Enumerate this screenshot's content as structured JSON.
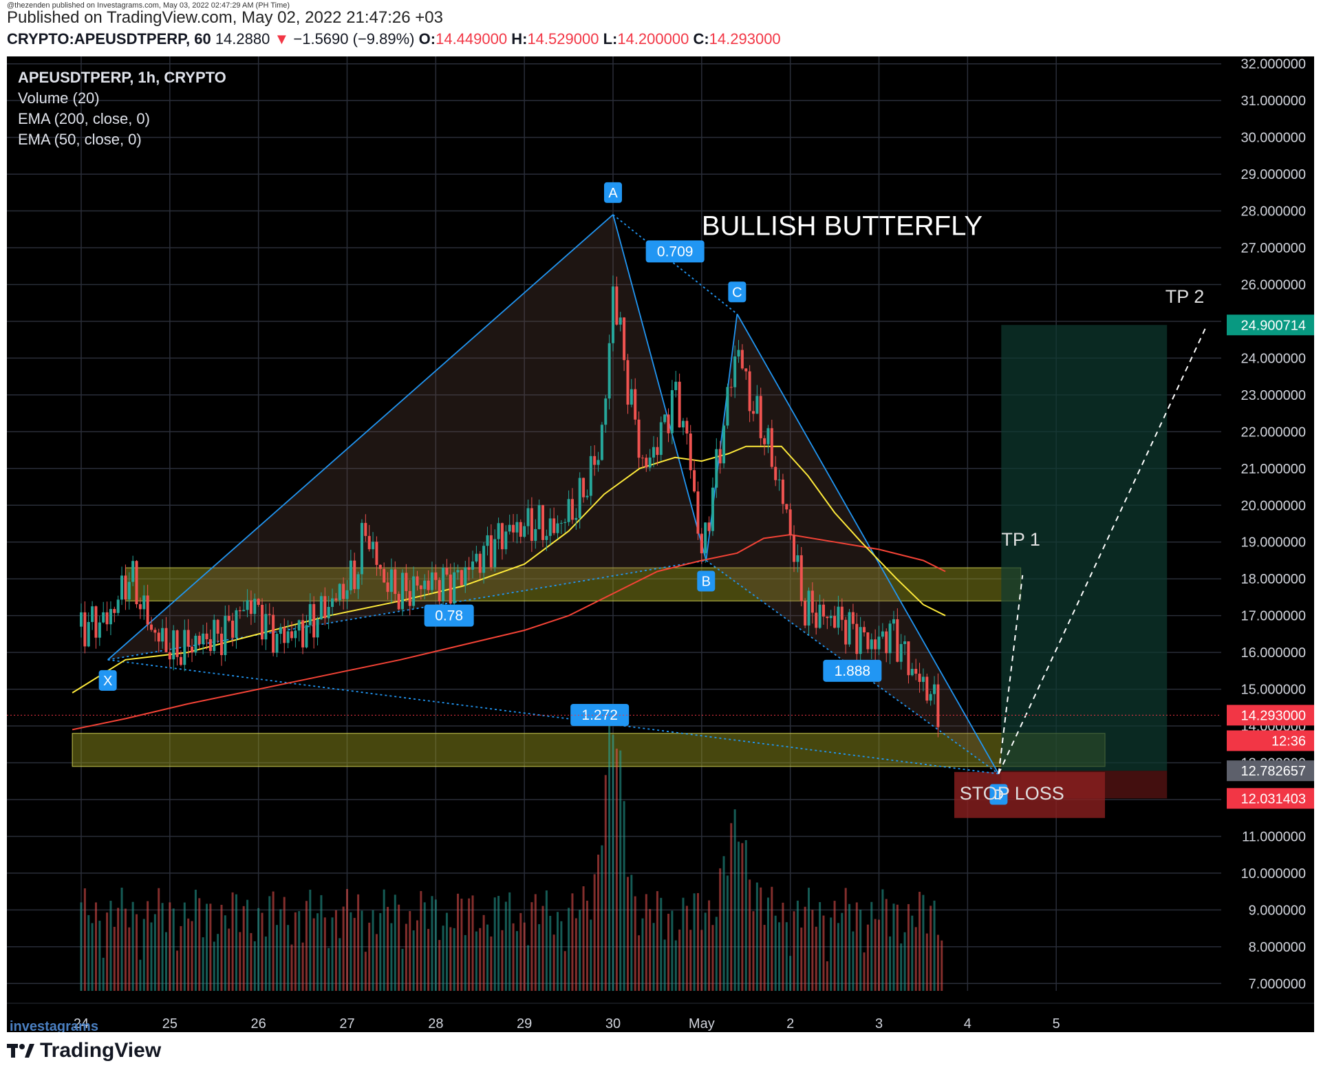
{
  "published": {
    "credit": "@thezenden published on Investagrams.com, May 03, 2022 02:47:29 AM (PH Time)",
    "main": "Published on TradingView.com, May 02, 2022 21:47:26 +03"
  },
  "header": {
    "symbol": "CRYPTO:APEUSDTPERP, 60",
    "last": "14.2880",
    "arrow": "▼",
    "change": "−1.5690 (−9.89%)",
    "o_label": "O:",
    "o": "14.449000",
    "h_label": "H:",
    "h": "14.529000",
    "l_label": "L:",
    "l": "14.200000",
    "c_label": "C:",
    "c": "14.293000"
  },
  "legend": [
    "APEUSDTPERP, 1h, CRYPTO",
    "Volume (20)",
    "EMA (200, close, 0)",
    "EMA (50, close, 0)"
  ],
  "footer": {
    "brand": "TradingView",
    "watermark": "investagrams"
  },
  "colors": {
    "background": "#000000",
    "grid": "#2a2e39",
    "candle_up": "#26a69a",
    "candle_down": "#ef5350",
    "pattern_line": "#2196f3",
    "ema200": "#f44336",
    "ema50": "#ffeb3b",
    "zone": "#9e9e1e",
    "target_box": "#0e3b30",
    "stop_box": "#5a1414",
    "label_bg": "#2196f3"
  },
  "chart_data": {
    "type": "candlestick",
    "title": "BULLISH BUTTERFLY",
    "pair": "APEUSDTPERP",
    "timeframe": "1h",
    "x_ticks": [
      "24",
      "25",
      "26",
      "27",
      "28",
      "29",
      "30",
      "May",
      "2",
      "3",
      "4",
      "5"
    ],
    "y_range": [
      6.8,
      32.2
    ],
    "y_ticks": [
      "32.000000",
      "31.000000",
      "30.000000",
      "29.000000",
      "28.000000",
      "27.000000",
      "26.000000",
      "25.000000",
      "24.000000",
      "23.000000",
      "22.000000",
      "21.000000",
      "20.000000",
      "19.000000",
      "18.000000",
      "17.000000",
      "16.000000",
      "15.000000",
      "14.000000",
      "13.000000",
      "12.000000",
      "11.000000",
      "10.000000",
      "9.000000",
      "8.000000",
      "7.000000"
    ],
    "grid": true,
    "price_path_days": [
      [
        23.0,
        16.7
      ],
      [
        23.3,
        16.9
      ],
      [
        23.55,
        18.1
      ],
      [
        23.8,
        16.6
      ],
      [
        24.05,
        16.0
      ],
      [
        24.3,
        16.3
      ],
      [
        24.6,
        16.5
      ],
      [
        24.9,
        17.4
      ],
      [
        25.2,
        16.4
      ],
      [
        25.5,
        16.6
      ],
      [
        25.8,
        17.3
      ],
      [
        26.1,
        18.1
      ],
      [
        26.2,
        19.4
      ],
      [
        26.4,
        18.0
      ],
      [
        26.6,
        17.6
      ],
      [
        26.9,
        17.9
      ],
      [
        27.2,
        17.9
      ],
      [
        27.5,
        18.6
      ],
      [
        27.8,
        19.3
      ],
      [
        28.1,
        19.5
      ],
      [
        28.3,
        19.3
      ],
      [
        28.6,
        20.0
      ],
      [
        28.85,
        21.5
      ],
      [
        28.95,
        23.8
      ],
      [
        29.0,
        26.0
      ],
      [
        29.15,
        23.5
      ],
      [
        29.35,
        20.9
      ],
      [
        29.55,
        22.0
      ],
      [
        29.7,
        23.1
      ],
      [
        29.85,
        21.6
      ],
      [
        30.0,
        18.6
      ],
      [
        30.2,
        21.5
      ],
      [
        30.4,
        24.4
      ],
      [
        30.55,
        22.8
      ],
      [
        30.7,
        22.0
      ],
      [
        30.9,
        20.3
      ],
      [
        31.0,
        19.3
      ],
      [
        31.15,
        17.2
      ],
      [
        31.35,
        17.0
      ],
      [
        31.55,
        16.9
      ],
      [
        31.75,
        16.5
      ],
      [
        31.95,
        16.2
      ],
      [
        32.15,
        16.6
      ],
      [
        32.4,
        15.4
      ],
      [
        32.55,
        15.0
      ],
      [
        32.7,
        14.3
      ]
    ],
    "ema50_days": [
      [
        22.9,
        14.9
      ],
      [
        23.5,
        15.8
      ],
      [
        24.2,
        16.0
      ],
      [
        25.0,
        16.5
      ],
      [
        25.8,
        17.0
      ],
      [
        26.6,
        17.4
      ],
      [
        27.3,
        17.8
      ],
      [
        28.0,
        18.4
      ],
      [
        28.5,
        19.3
      ],
      [
        28.9,
        20.3
      ],
      [
        29.3,
        21.0
      ],
      [
        29.7,
        21.3
      ],
      [
        30.0,
        21.2
      ],
      [
        30.3,
        21.4
      ],
      [
        30.5,
        21.6
      ],
      [
        30.9,
        21.6
      ],
      [
        31.2,
        20.8
      ],
      [
        31.5,
        19.8
      ],
      [
        31.8,
        19.0
      ],
      [
        32.2,
        18.0
      ],
      [
        32.5,
        17.3
      ],
      [
        32.75,
        17.0
      ]
    ],
    "ema200_days": [
      [
        22.9,
        13.9
      ],
      [
        23.5,
        14.2
      ],
      [
        24.2,
        14.6
      ],
      [
        25.0,
        15.0
      ],
      [
        25.8,
        15.4
      ],
      [
        26.6,
        15.8
      ],
      [
        27.3,
        16.2
      ],
      [
        28.0,
        16.6
      ],
      [
        28.5,
        17.0
      ],
      [
        29.0,
        17.6
      ],
      [
        29.5,
        18.2
      ],
      [
        30.0,
        18.5
      ],
      [
        30.4,
        18.7
      ],
      [
        30.7,
        19.1
      ],
      [
        31.0,
        19.2
      ],
      [
        31.5,
        19.0
      ],
      [
        32.0,
        18.8
      ],
      [
        32.5,
        18.5
      ],
      [
        32.75,
        18.2
      ]
    ],
    "harmonic_points": [
      {
        "label": "X",
        "day": 23.3,
        "price": 15.8
      },
      {
        "label": "A",
        "day": 29.0,
        "price": 27.9
      },
      {
        "label": "B",
        "day": 30.05,
        "price": 18.5
      },
      {
        "label": "C",
        "day": 30.4,
        "price": 25.2
      },
      {
        "label": "D",
        "day": 33.35,
        "price": 12.7
      }
    ],
    "ratios": [
      {
        "label": "0.709",
        "day": 29.7,
        "price": 26.9
      },
      {
        "label": "0.78",
        "day": 27.15,
        "price": 17.0
      },
      {
        "label": "1.888",
        "day": 31.7,
        "price": 15.5
      },
      {
        "label": "1.272",
        "day": 28.85,
        "price": 14.3
      }
    ],
    "zones": [
      {
        "from_day": 23.5,
        "to_day": 33.6,
        "low": 17.4,
        "high": 18.3
      },
      {
        "from_day": 22.9,
        "to_day": 34.55,
        "low": 12.9,
        "high": 13.8
      }
    ],
    "annotations": [
      {
        "text": "TP 1",
        "day": 33.6,
        "price": 18.9
      },
      {
        "text": "TP 2",
        "day": 35.45,
        "price": 25.5
      },
      {
        "text": "STOP LOSS",
        "day": 33.5,
        "price": 12.0
      }
    ],
    "position": {
      "entry": 12.782657,
      "target": 24.900714,
      "stop": 12.031403,
      "from_day": 33.38,
      "to_day": 35.25
    },
    "price_labels": [
      {
        "value": "24.900714",
        "price": 24.900714,
        "color": "#089981"
      },
      {
        "value": "14.293000",
        "price": 14.293,
        "color": "#f23645"
      },
      {
        "value": "12:36",
        "price": 13.6,
        "color": "#f23645"
      },
      {
        "value": "12.782657",
        "price": 12.782657,
        "color": "#5d606b"
      },
      {
        "value": "12.031403",
        "price": 12.031403,
        "color": "#f23645"
      }
    ]
  }
}
